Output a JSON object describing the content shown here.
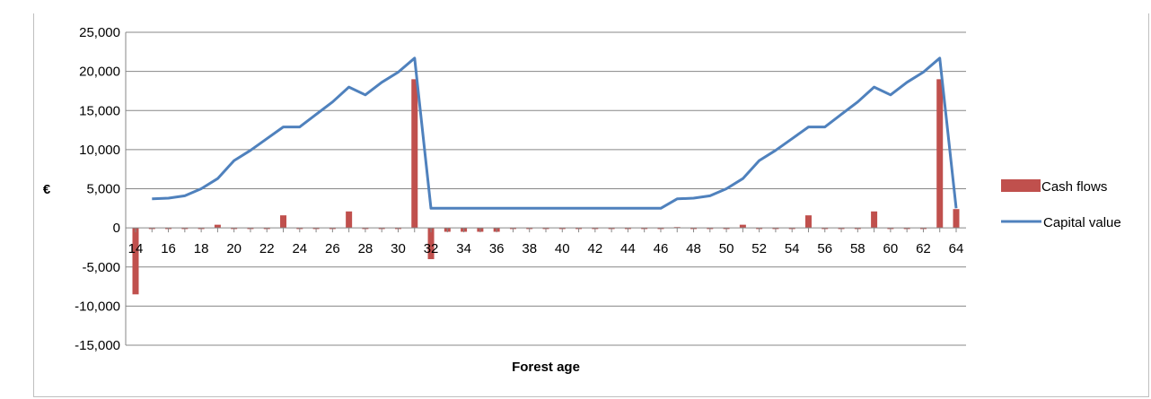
{
  "chart_data": {
    "type": "bar+line",
    "title": "",
    "xlabel": "Forest age",
    "ylabel": "€",
    "ylim": [
      -15000,
      25000
    ],
    "yticks": [
      25000,
      20000,
      15000,
      10000,
      5000,
      0,
      -5000,
      -10000,
      -15000
    ],
    "ytick_labels": [
      "25,000",
      "20,000",
      "15,000",
      "10,000",
      "5,000",
      "0",
      "-5,000",
      "-10,000",
      "-15,000"
    ],
    "x": [
      14,
      15,
      16,
      17,
      18,
      19,
      20,
      21,
      22,
      23,
      24,
      25,
      26,
      27,
      28,
      29,
      30,
      31,
      32,
      33,
      34,
      35,
      36,
      37,
      38,
      39,
      40,
      41,
      42,
      43,
      44,
      45,
      46,
      47,
      48,
      49,
      50,
      51,
      52,
      53,
      54,
      55,
      56,
      57,
      58,
      59,
      60,
      61,
      62,
      63,
      64
    ],
    "xtick_labels": [
      "14",
      "16",
      "18",
      "20",
      "22",
      "24",
      "26",
      "28",
      "30",
      "32",
      "34",
      "36",
      "38",
      "40",
      "42",
      "44",
      "46",
      "48",
      "50",
      "52",
      "54",
      "56",
      "58",
      "60",
      "62",
      "64"
    ],
    "legend_position": "right",
    "series": [
      {
        "name": "Cash flows",
        "kind": "bar",
        "color": "#c0504d",
        "values": [
          -8500,
          -150,
          -150,
          -150,
          -150,
          400,
          -150,
          -150,
          -150,
          1600,
          -150,
          -150,
          -150,
          2100,
          -150,
          -150,
          -150,
          19000,
          -4000,
          -500,
          -500,
          -500,
          -500,
          -150,
          -150,
          -150,
          -150,
          -150,
          -150,
          -150,
          -150,
          -150,
          -150,
          100,
          -150,
          -150,
          -150,
          400,
          -150,
          -150,
          -150,
          1600,
          -150,
          -150,
          -150,
          2100,
          -150,
          -150,
          -150,
          19000,
          2400
        ]
      },
      {
        "name": "Capital value",
        "kind": "line",
        "color": "#4f81bd",
        "values": [
          null,
          3700,
          3800,
          4100,
          5000,
          6300,
          8600,
          9900,
          11400,
          12900,
          12900,
          14500,
          16100,
          18000,
          17000,
          18600,
          19900,
          21700,
          2500,
          2500,
          2500,
          2500,
          2500,
          2500,
          2500,
          2500,
          2500,
          2500,
          2500,
          2500,
          2500,
          2500,
          2500,
          3700,
          3800,
          4100,
          5000,
          6300,
          8600,
          9900,
          11400,
          12900,
          12900,
          14500,
          16100,
          18000,
          17000,
          18600,
          19900,
          21700,
          2500
        ]
      }
    ]
  }
}
